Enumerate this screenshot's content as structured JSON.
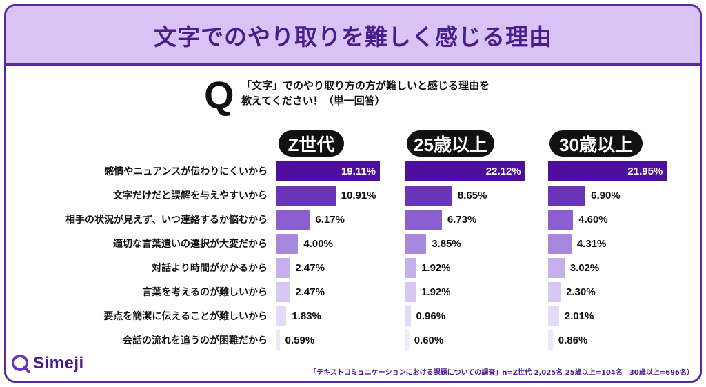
{
  "title": "文字でのやり取りを難しく感じる理由",
  "question": {
    "mark": "Q",
    "line1": "「文字」でのやり取り方の方が難しいと感じる理由を",
    "line2": "教えてください！（単一回答）"
  },
  "chart_data": {
    "type": "bar",
    "orientation": "horizontal",
    "title": "文字でのやり取りを難しく感じる理由",
    "categories": [
      "感情やニュアンスが伝わりにくいから",
      "文字だけだと誤解を与えやすいから",
      "相手の状況が見えず、いつ連絡するか悩むから",
      "適切な言葉遣いの選択が大変だから",
      "対話より時間がかかるから",
      "言葉を考えるのが難しいから",
      "要点を簡潔に伝えることが難しいから",
      "会話の流れを追うのが困難だから"
    ],
    "series": [
      {
        "name": "Z世代",
        "values": [
          19.11,
          10.91,
          6.17,
          4.0,
          2.47,
          2.47,
          1.83,
          0.59
        ],
        "labels": [
          "19.11%",
          "10.91%",
          "6.17%",
          "4.00%",
          "2.47%",
          "2.47%",
          "1.83%",
          "0.59%"
        ]
      },
      {
        "name": "25歳以上",
        "values": [
          22.12,
          8.65,
          6.73,
          3.85,
          1.92,
          1.92,
          0.96,
          0.6
        ],
        "labels": [
          "22.12%",
          "8.65%",
          "6.73%",
          "3.85%",
          "1.92%",
          "1.92%",
          "0.96%",
          "0.60%"
        ]
      },
      {
        "name": "30歳以上",
        "values": [
          21.95,
          6.9,
          4.6,
          4.31,
          3.02,
          2.3,
          2.01,
          0.86
        ],
        "labels": [
          "21.95%",
          "6.90%",
          "4.60%",
          "4.31%",
          "3.02%",
          "2.30%",
          "2.01%",
          "0.86%"
        ]
      }
    ],
    "unit": "%",
    "colors": [
      "#4e0f9e",
      "#6a35b8",
      "#8b5fcf",
      "#a888de",
      "#c6b0ec",
      "#d8c9f4",
      "#e4daf8",
      "#eee8fb"
    ]
  },
  "logo": {
    "name": "Simeji",
    "icon": "simeji-logo-icon"
  },
  "footnote": "「テキストコミュニケーションにおける課題についての調査」n=Z世代 2,025名 25歳以上=104名　30歳以上=696名）"
}
